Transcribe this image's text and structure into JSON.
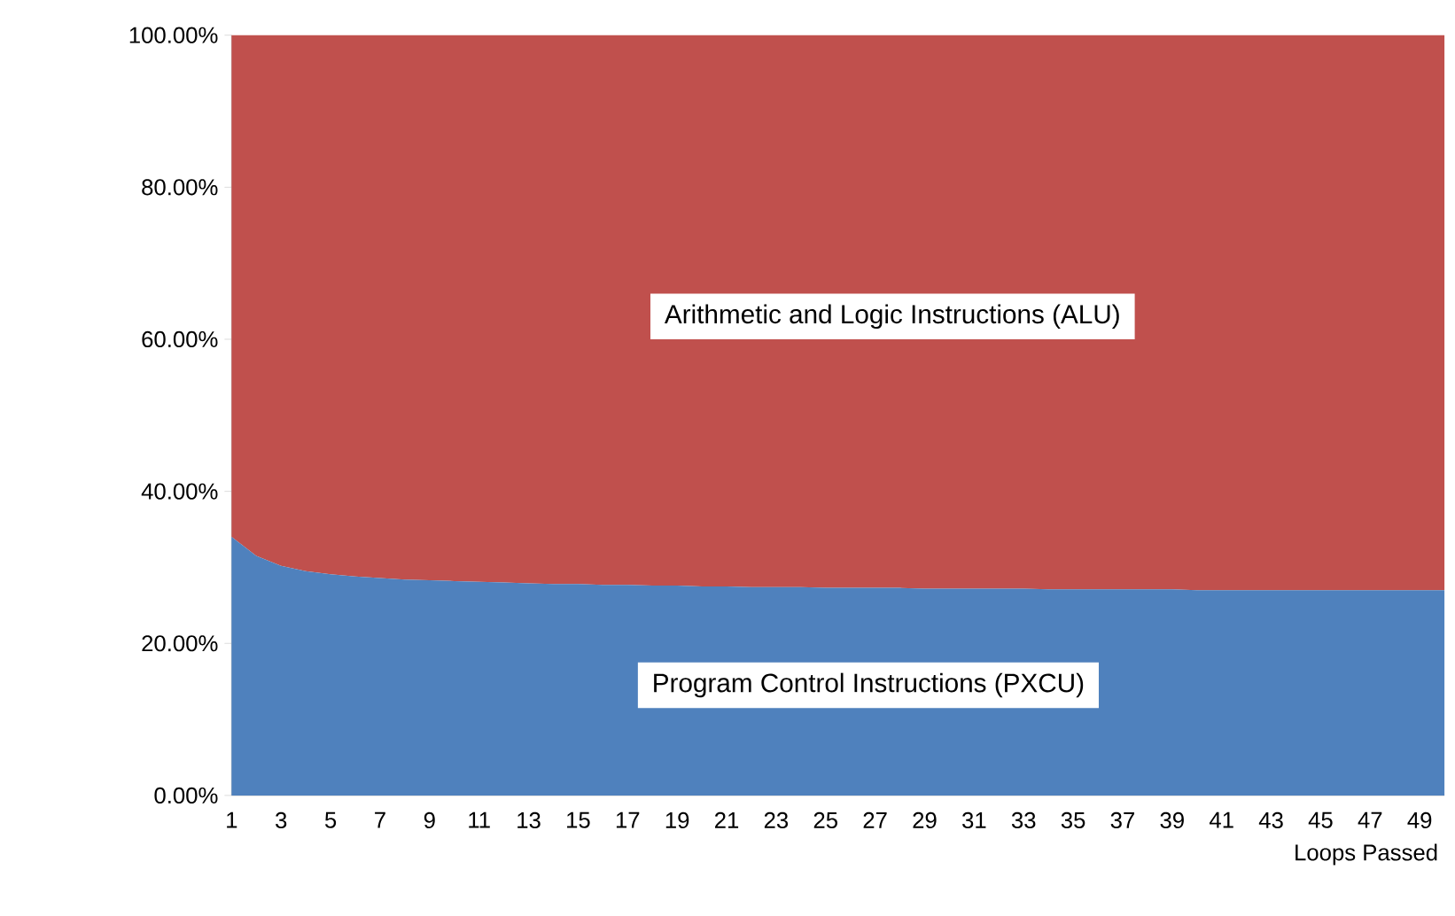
{
  "chart_data": {
    "type": "area",
    "stacked": true,
    "xlabel": "Loops Passed",
    "categories": [
      "1",
      null,
      "3",
      null,
      "5",
      null,
      "7",
      null,
      "9",
      null,
      "11",
      null,
      "13",
      null,
      "15",
      null,
      "17",
      null,
      "19",
      null,
      "21",
      null,
      "23",
      null,
      "25",
      null,
      "27",
      null,
      "29",
      null,
      "31",
      null,
      "33",
      null,
      "35",
      null,
      "37",
      null,
      "39",
      null,
      "41",
      null,
      "43",
      null,
      "45",
      null,
      "47",
      null,
      "49",
      null
    ],
    "series": [
      {
        "color": "#4f81bd",
        "values": [
          34,
          31.5,
          30.2,
          29.5,
          29.1,
          28.8,
          28.6,
          28.4,
          28.3,
          28.2,
          28.1,
          28,
          27.9,
          27.8,
          27.8,
          27.7,
          27.7,
          27.6,
          27.6,
          27.5,
          27.5,
          27.4,
          27.4,
          27.4,
          27.3,
          27.3,
          27.3,
          27.3,
          27.2,
          27.2,
          27.2,
          27.2,
          27.2,
          27.1,
          27.1,
          27.1,
          27.1,
          27.1,
          27.1,
          27.0,
          27.0,
          27.0,
          27.0,
          27.0,
          27.0,
          27.0,
          27.0,
          27.0,
          27.0,
          27.0
        ]
      },
      {
        "color": "#c0504d",
        "values": [
          66,
          68.5,
          69.8,
          70.5,
          70.9,
          71.2,
          71.4,
          71.6,
          71.7,
          71.8,
          71.9,
          72,
          72.1,
          72.2,
          72.2,
          72.3,
          72.3,
          72.4,
          72.4,
          72.5,
          72.5,
          72.6,
          72.6,
          72.6,
          72.7,
          72.7,
          72.7,
          72.7,
          72.8,
          72.8,
          72.8,
          72.8,
          72.8,
          72.9,
          72.9,
          72.9,
          72.9,
          72.9,
          72.9,
          73.0,
          73.0,
          73.0,
          73.0,
          73.0,
          73.0,
          73.0,
          73.0,
          73.0,
          73.0,
          73.0
        ]
      }
    ],
    "ylim": [
      0,
      100
    ],
    "yticks": [
      {
        "value": 0,
        "label": "0.00%"
      },
      {
        "value": 20,
        "label": "20.00%"
      },
      {
        "value": 40,
        "label": "40.00%"
      },
      {
        "value": 60,
        "label": "60.00%"
      },
      {
        "value": 80,
        "label": "80.00%"
      },
      {
        "value": 100,
        "label": "100.00%"
      }
    ],
    "annotations": [
      "Arithmetic and Logic Instructions (ALU)",
      "Program Control Instructions (PXCU)"
    ]
  }
}
